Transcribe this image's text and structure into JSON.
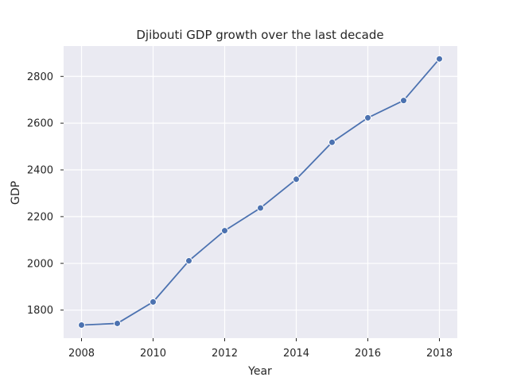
{
  "chart_data": {
    "type": "line",
    "title": "Djibouti GDP growth over the last decade",
    "xlabel": "Year",
    "ylabel": "GDP",
    "x": [
      2008,
      2009,
      2010,
      2011,
      2012,
      2013,
      2014,
      2015,
      2016,
      2017,
      2018
    ],
    "series": [
      {
        "values": [
          1736,
          1743,
          1835,
          2011,
          2140,
          2237,
          2360,
          2518,
          2623,
          2697,
          2875
        ],
        "color": "#4c72b0"
      }
    ],
    "xlim": [
      2007.5,
      2018.5
    ],
    "ylim": [
      1680,
      2930
    ],
    "xticks": [
      2008,
      2010,
      2012,
      2014,
      2016,
      2018
    ],
    "yticks": [
      1800,
      2000,
      2200,
      2400,
      2600,
      2800
    ],
    "grid": true,
    "background": "#eaeaf2"
  }
}
